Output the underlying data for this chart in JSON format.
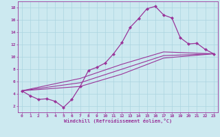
{
  "xlabel": "Windchill (Refroidissement éolien,°C)",
  "background_color": "#cce9f0",
  "grid_color": "#aad4e0",
  "line_color": "#993399",
  "xlim": [
    -0.5,
    23.5
  ],
  "ylim": [
    1.0,
    19.0
  ],
  "xticks": [
    0,
    1,
    2,
    3,
    4,
    5,
    6,
    7,
    8,
    9,
    10,
    11,
    12,
    13,
    14,
    15,
    16,
    17,
    18,
    19,
    20,
    21,
    22,
    23
  ],
  "yticks": [
    2,
    4,
    6,
    8,
    10,
    12,
    14,
    16,
    18
  ],
  "curve1_x": [
    0,
    1,
    2,
    3,
    4,
    5,
    6,
    7,
    8,
    9,
    10,
    11,
    12,
    13,
    14,
    15,
    16,
    17,
    18,
    19,
    20,
    21,
    22,
    23
  ],
  "curve1_y": [
    4.5,
    3.7,
    3.1,
    3.2,
    2.8,
    1.8,
    3.1,
    5.2,
    7.8,
    8.3,
    9.0,
    10.5,
    12.3,
    14.8,
    16.2,
    17.8,
    18.2,
    16.8,
    16.3,
    13.1,
    12.1,
    12.2,
    11.2,
    10.5
  ],
  "curve2_x": [
    0,
    23
  ],
  "curve2_y": [
    4.5,
    10.5
  ],
  "curve3_x": [
    0,
    23
  ],
  "curve3_y": [
    4.5,
    10.5
  ],
  "curve4_x": [
    0,
    23
  ],
  "curve4_y": [
    4.5,
    10.5
  ],
  "c2_waypoints_x": [
    0,
    7,
    12,
    17,
    23
  ],
  "c2_waypoints_y": [
    4.5,
    5.8,
    8.0,
    10.2,
    10.5
  ],
  "c3_waypoints_x": [
    0,
    7,
    12,
    17,
    23
  ],
  "c3_waypoints_y": [
    4.5,
    6.5,
    8.8,
    10.8,
    10.5
  ],
  "c4_waypoints_x": [
    0,
    7,
    12,
    17,
    23
  ],
  "c4_waypoints_y": [
    4.5,
    5.2,
    7.2,
    9.8,
    10.5
  ]
}
